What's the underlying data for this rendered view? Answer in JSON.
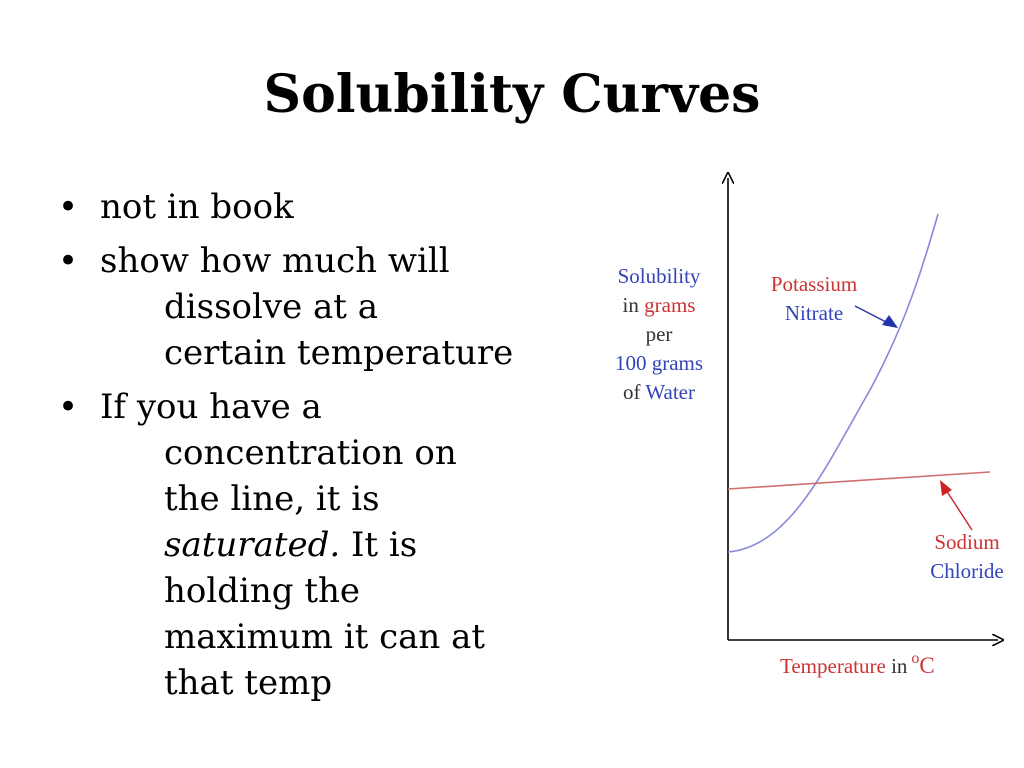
{
  "slide": {
    "title": "Solubility Curves",
    "bullets": [
      {
        "dot": "•",
        "lines": [
          "not in book"
        ]
      },
      {
        "dot": "•",
        "lines": [
          "show how much will",
          "dissolve at a",
          "certain temperature"
        ]
      },
      {
        "dot": "•",
        "lines": [
          "If you have a",
          "concentration on",
          "the line, it is"
        ],
        "italic_word": "saturated.",
        "after_italic": " It is",
        "lines_after": [
          "holding the",
          "maximum it can at",
          "that temp"
        ]
      }
    ]
  },
  "figure": {
    "y_axis_label": {
      "line1": "Solubility",
      "line2_a": "in ",
      "line2_b": "grams",
      "line3": "per",
      "line4": "100 grams",
      "line5_a": "of ",
      "line5_b": "Water"
    },
    "series_labels": {
      "potassium_line1": "Potassium",
      "potassium_line2": "Nitrate",
      "sodium_line1": "Sodium",
      "sodium_line2": "Chloride"
    },
    "x_axis_label": {
      "word": "Temperature",
      "in": " in",
      "degree": "o",
      "unit": "C"
    },
    "colors": {
      "potassium_curve": "#8888dd",
      "sodium_line": "#d07070",
      "arrow_blue": "#2233aa",
      "arrow_red": "#cc2222",
      "axis": "#000000"
    }
  }
}
